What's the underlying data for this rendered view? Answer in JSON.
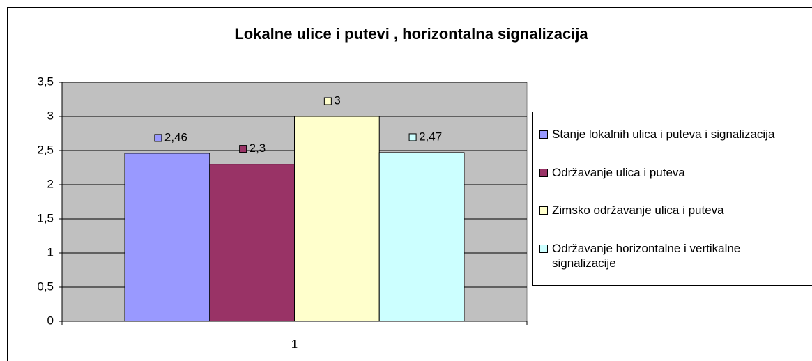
{
  "chart_data": {
    "type": "bar",
    "title": "Lokalne ulice i putevi , horizontalna signalizacija",
    "categories": [
      "1"
    ],
    "series": [
      {
        "name": "Stanje lokalnih ulica i puteva i signalizacija",
        "color": "#9999ff",
        "values": [
          2.46
        ],
        "value_labels": [
          "2,46"
        ]
      },
      {
        "name": "Održavanje ulica i puteva",
        "color": "#993366",
        "values": [
          2.3
        ],
        "value_labels": [
          "2,3"
        ]
      },
      {
        "name": "Zimsko održavanje ulica i puteva",
        "color": "#ffffcc",
        "values": [
          3
        ],
        "value_labels": [
          "3"
        ]
      },
      {
        "name": "Održavanje horizontalne i vertikalne signalizacije",
        "color": "#ccffff",
        "values": [
          2.47
        ],
        "value_labels": [
          "2,47"
        ]
      }
    ],
    "ylim": [
      0,
      3.5
    ],
    "yticks": [
      0,
      {
        "value": 0.5,
        "label": "0,5"
      },
      1,
      {
        "value": 1.5,
        "label": "1,5"
      },
      2,
      {
        "value": 2.5,
        "label": "2,5"
      },
      3,
      {
        "value": 3.5,
        "label": "3,5"
      }
    ],
    "grid": true,
    "legend": "right"
  }
}
